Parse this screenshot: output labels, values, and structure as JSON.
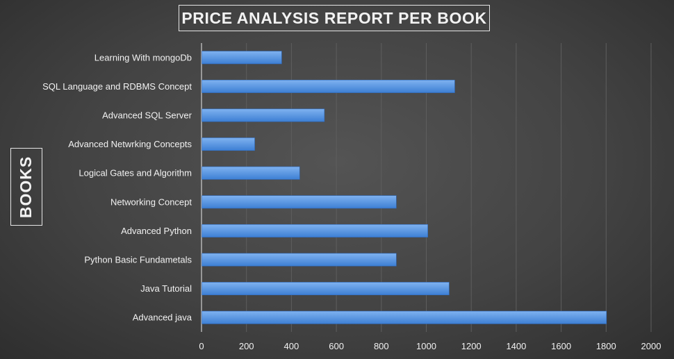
{
  "chart_data": {
    "type": "bar",
    "orientation": "horizontal",
    "title": "PRICE ANALYSIS REPORT PER BOOK",
    "ylabel": "BOOKS",
    "categories": [
      "Learning With mongoDb",
      "SQL Language and RDBMS Concept",
      "Advanced SQL Server",
      "Advanced Netwrking Concepts",
      "Logical Gates and Algorithm",
      "Networking Concept",
      "Advanced Python",
      "Python Basic Fundametals",
      "Java Tutorial",
      "Advanced java"
    ],
    "values": [
      355,
      1125,
      545,
      235,
      435,
      865,
      1005,
      865,
      1100,
      1800
    ],
    "xlim": [
      0,
      2000
    ],
    "xticks": [
      "0",
      "200",
      "400",
      "600",
      "800",
      "1000",
      "1200",
      "1400",
      "1600",
      "1800",
      "2000"
    ],
    "grid": true,
    "legend": "none",
    "colors": {
      "bar_top": "#7fb2f0",
      "bar_bottom": "#3d7fd4",
      "grid": "#5e5e5e",
      "text": "#f2f2f2"
    }
  }
}
